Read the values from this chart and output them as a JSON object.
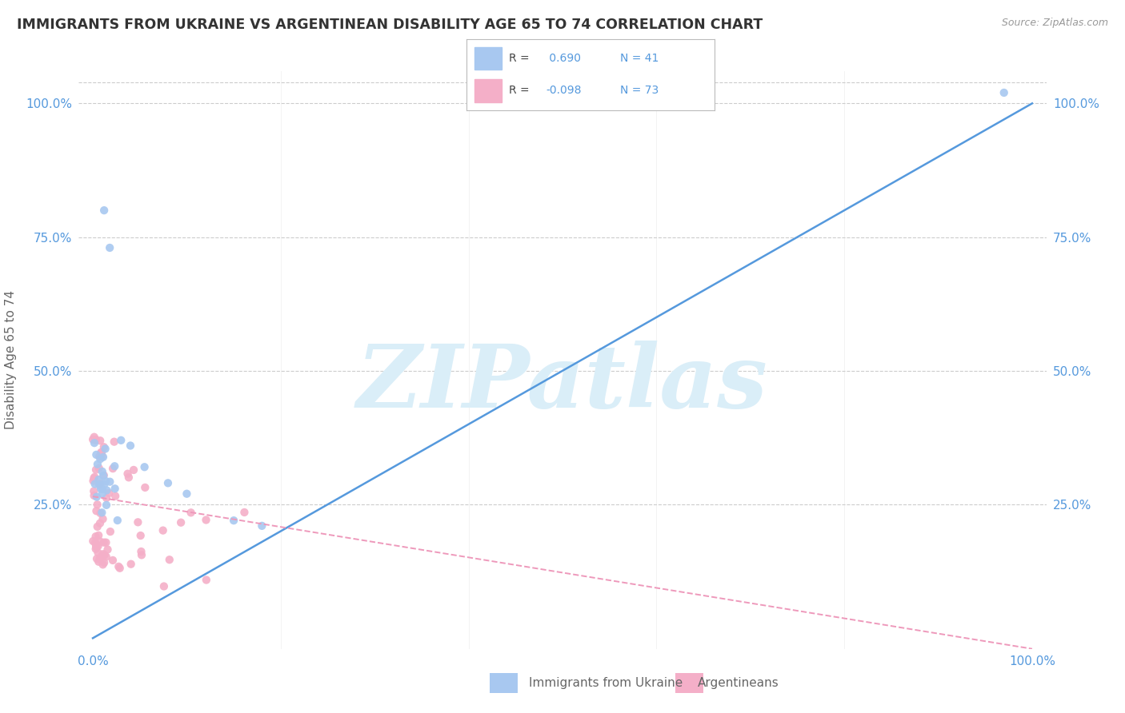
{
  "title": "IMMIGRANTS FROM UKRAINE VS ARGENTINEAN DISABILITY AGE 65 TO 74 CORRELATION CHART",
  "source": "Source: ZipAtlas.com",
  "ylabel": "Disability Age 65 to 74",
  "legend_label1": "Immigrants from Ukraine",
  "legend_label2": "Argentineans",
  "r1": 0.69,
  "n1": 41,
  "r2": -0.098,
  "n2": 73,
  "ukraine_color": "#a8c8f0",
  "argentina_color": "#f4afc8",
  "ukraine_line_color": "#5599dd",
  "argentina_line_color": "#ee99bb",
  "watermark_text": "ZIPatlas",
  "watermark_color": "#daeef8",
  "grid_color": "#cccccc",
  "tick_color": "#5599dd",
  "title_color": "#333333",
  "label_color": "#666666",
  "source_color": "#999999",
  "ukr_line_x0": 0.0,
  "ukr_line_y0": 0.0,
  "ukr_line_x1": 1.0,
  "ukr_line_y1": 1.0,
  "arg_line_x0": 0.0,
  "arg_line_y0": 0.265,
  "arg_line_x1": 1.0,
  "arg_line_y1": -0.02,
  "xlim": [
    0.0,
    1.0
  ],
  "ylim": [
    0.0,
    1.0
  ],
  "y_ticks": [
    0.25,
    0.5,
    0.75,
    1.0
  ],
  "y_tick_labels": [
    "25.0%",
    "50.0%",
    "75.0%",
    "100.0%"
  ],
  "x_ticks": [
    0.0,
    1.0
  ],
  "x_tick_labels": [
    "0.0%",
    "100.0%"
  ]
}
